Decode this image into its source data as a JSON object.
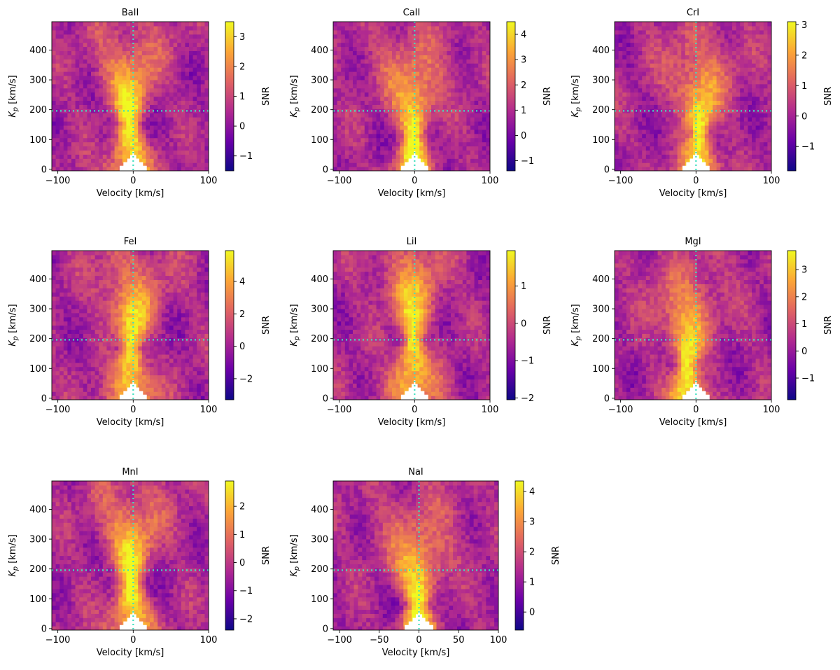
{
  "colors": {
    "colormap": [
      "#0d0887",
      "#6a00a8",
      "#b12a90",
      "#e16462",
      "#fca636",
      "#f0f921"
    ],
    "guide_line": "#40e0c0",
    "mask": "#ffffff"
  },
  "chart_data": [
    {
      "type": "heatmap",
      "title": "BaII",
      "xlabel": "Velocity [km/s]",
      "ylabel": "K_p [km/s]",
      "xlim": [
        -108,
        100
      ],
      "ylim": [
        -5,
        495
      ],
      "xticks": [
        "-100",
        "0",
        "100"
      ],
      "xtick_values": [
        -100,
        0,
        100
      ],
      "yticks": [
        "0",
        "100",
        "200",
        "300",
        "400"
      ],
      "ytick_values": [
        0,
        100,
        200,
        300,
        400
      ],
      "colorbar_label": "SNR",
      "vmin": -1.5,
      "vmax": 3.5,
      "colorbar_ticks": [
        "−1",
        "0",
        "1",
        "2",
        "3"
      ],
      "colorbar_tick_values": [
        -1,
        0,
        1,
        2,
        3
      ],
      "guide_vx": 0,
      "guide_kp": 196,
      "peak_v": -5,
      "peak_kp": 150,
      "peak_snr": 3.2,
      "grid": false
    },
    {
      "type": "heatmap",
      "title": "CaII",
      "xlabel": "Velocity [km/s]",
      "ylabel": "K_p [km/s]",
      "xlim": [
        -108,
        100
      ],
      "ylim": [
        -5,
        495
      ],
      "xticks": [
        "-100",
        "0",
        "100"
      ],
      "xtick_values": [
        -100,
        0,
        100
      ],
      "yticks": [
        "0",
        "100",
        "200",
        "300",
        "400"
      ],
      "ytick_values": [
        0,
        100,
        200,
        300,
        400
      ],
      "colorbar_label": "SNR",
      "vmin": -1.4,
      "vmax": 4.5,
      "colorbar_ticks": [
        "−1",
        "0",
        "1",
        "2",
        "3",
        "4"
      ],
      "colorbar_tick_values": [
        -1,
        0,
        1,
        2,
        3,
        4
      ],
      "guide_vx": 0,
      "guide_kp": 196,
      "peak_v": -2,
      "peak_kp": 110,
      "peak_snr": 4.2,
      "grid": false
    },
    {
      "type": "heatmap",
      "title": "CrI",
      "xlabel": "Velocity [km/s]",
      "ylabel": "K_p [km/s]",
      "xlim": [
        -108,
        100
      ],
      "ylim": [
        -5,
        495
      ],
      "xticks": [
        "-100",
        "0",
        "100"
      ],
      "xtick_values": [
        -100,
        0,
        100
      ],
      "yticks": [
        "0",
        "100",
        "200",
        "300",
        "400"
      ],
      "ytick_values": [
        0,
        100,
        200,
        300,
        400
      ],
      "colorbar_label": "SNR",
      "vmin": -1.8,
      "vmax": 3.1,
      "colorbar_ticks": [
        "−1",
        "0",
        "1",
        "2",
        "3"
      ],
      "colorbar_tick_values": [
        -1,
        0,
        1,
        2,
        3
      ],
      "guide_vx": 0,
      "guide_kp": 196,
      "peak_v": 5,
      "peak_kp": 120,
      "peak_snr": 2.9,
      "grid": false
    },
    {
      "type": "heatmap",
      "title": "FeI",
      "xlabel": "Velocity [km/s]",
      "ylabel": "K_p [km/s]",
      "xlim": [
        -108,
        100
      ],
      "ylim": [
        -5,
        495
      ],
      "xticks": [
        "-100",
        "0",
        "100"
      ],
      "xtick_values": [
        -100,
        0,
        100
      ],
      "yticks": [
        "0",
        "100",
        "200",
        "300",
        "400"
      ],
      "ytick_values": [
        0,
        100,
        200,
        300,
        400
      ],
      "colorbar_label": "SNR",
      "vmin": -3.3,
      "vmax": 5.9,
      "colorbar_ticks": [
        "−2",
        "0",
        "2",
        "4"
      ],
      "colorbar_tick_values": [
        -2,
        0,
        2,
        4
      ],
      "guide_vx": 0,
      "guide_kp": 196,
      "peak_v": -2,
      "peak_kp": 170,
      "peak_snr": 5.6,
      "grid": false
    },
    {
      "type": "heatmap",
      "title": "LiI",
      "xlabel": "Velocity [km/s]",
      "ylabel": "K_p [km/s]",
      "xlim": [
        -108,
        100
      ],
      "ylim": [
        -5,
        495
      ],
      "xticks": [
        "-100",
        "0",
        "100"
      ],
      "xtick_values": [
        -100,
        0,
        100
      ],
      "yticks": [
        "0",
        "100",
        "200",
        "300",
        "400"
      ],
      "ytick_values": [
        0,
        100,
        200,
        300,
        400
      ],
      "colorbar_label": "SNR",
      "vmin": -2.05,
      "vmax": 1.95,
      "colorbar_ticks": [
        "−2",
        "−1",
        "0",
        "1"
      ],
      "colorbar_tick_values": [
        -2,
        -1,
        0,
        1
      ],
      "guide_vx": 0,
      "guide_kp": 196,
      "peak_v": -3,
      "peak_kp": 200,
      "peak_snr": 1.8,
      "grid": false
    },
    {
      "type": "heatmap",
      "title": "MgI",
      "xlabel": "Velocity [km/s]",
      "ylabel": "K_p [km/s]",
      "xlim": [
        -108,
        100
      ],
      "ylim": [
        -5,
        495
      ],
      "xticks": [
        "-100",
        "0",
        "100"
      ],
      "xtick_values": [
        -100,
        0,
        100
      ],
      "yticks": [
        "0",
        "100",
        "200",
        "300",
        "400"
      ],
      "ytick_values": [
        0,
        100,
        200,
        300,
        400
      ],
      "colorbar_label": "SNR",
      "vmin": -1.8,
      "vmax": 3.7,
      "colorbar_ticks": [
        "−1",
        "0",
        "1",
        "2",
        "3"
      ],
      "colorbar_tick_values": [
        -1,
        0,
        1,
        2,
        3
      ],
      "guide_vx": 0,
      "guide_kp": 196,
      "peak_v": -12,
      "peak_kp": 110,
      "peak_snr": 3.5,
      "grid": false
    },
    {
      "type": "heatmap",
      "title": "MnI",
      "xlabel": "Velocity [km/s]",
      "ylabel": "K_p [km/s]",
      "xlim": [
        -108,
        100
      ],
      "ylim": [
        -5,
        495
      ],
      "xticks": [
        "-100",
        "0",
        "100"
      ],
      "xtick_values": [
        -100,
        0,
        100
      ],
      "yticks": [
        "0",
        "100",
        "200",
        "300",
        "400"
      ],
      "ytick_values": [
        0,
        100,
        200,
        300,
        400
      ],
      "colorbar_label": "SNR",
      "vmin": -2.4,
      "vmax": 2.9,
      "colorbar_ticks": [
        "−2",
        "−1",
        "0",
        "1",
        "2"
      ],
      "colorbar_tick_values": [
        -2,
        -1,
        0,
        1,
        2
      ],
      "guide_vx": 0,
      "guide_kp": 196,
      "peak_v": -3,
      "peak_kp": 160,
      "peak_snr": 2.7,
      "grid": false
    },
    {
      "type": "heatmap",
      "title": "NaI",
      "xlabel": "Velocity [km/s]",
      "ylabel": "K_p [km/s]",
      "xlim": [
        -108,
        100
      ],
      "ylim": [
        -5,
        495
      ],
      "xticks": [
        "-100",
        "-50",
        "0",
        "50",
        "100"
      ],
      "xtick_values": [
        -100,
        -50,
        0,
        50,
        100
      ],
      "yticks": [
        "0",
        "100",
        "200",
        "300",
        "400"
      ],
      "ytick_values": [
        0,
        100,
        200,
        300,
        400
      ],
      "colorbar_label": "SNR",
      "vmin": -0.6,
      "vmax": 4.35,
      "colorbar_ticks": [
        "0",
        "1",
        "2",
        "3",
        "4"
      ],
      "colorbar_tick_values": [
        0,
        1,
        2,
        3,
        4
      ],
      "guide_vx": 0,
      "guide_kp": 196,
      "peak_v": -2,
      "peak_kp": 80,
      "peak_snr": 4.1,
      "grid": false
    }
  ]
}
